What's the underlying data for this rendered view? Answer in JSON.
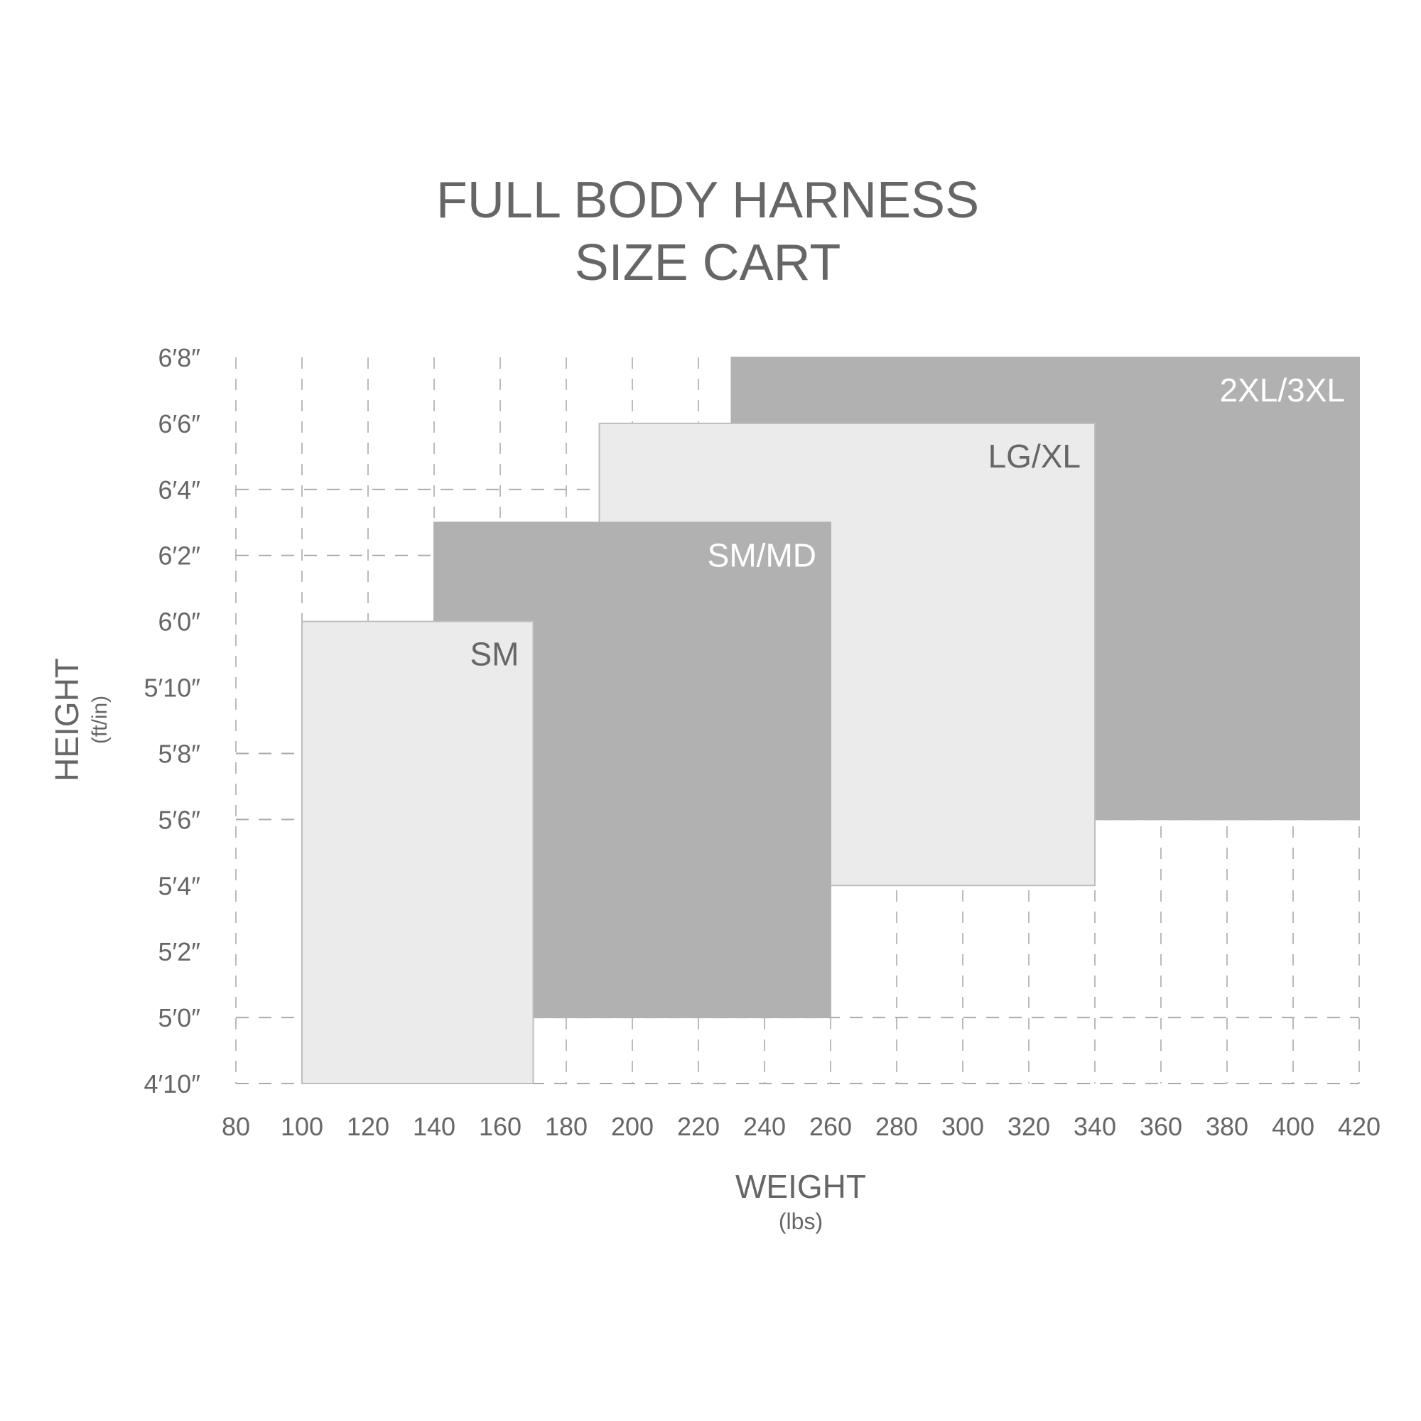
{
  "chart_data": {
    "type": "bar",
    "title_lines": [
      "FULL BODY HARNESS",
      "SIZE CART"
    ],
    "xlabel": "WEIGHT",
    "xunit": "(lbs)",
    "ylabel": "HEIGHT",
    "yunit": "(ft/in)",
    "xlim": [
      80,
      420
    ],
    "ylim_inches": [
      58,
      80
    ],
    "x_ticks": [
      80,
      100,
      120,
      140,
      160,
      180,
      200,
      220,
      240,
      260,
      280,
      300,
      320,
      340,
      360,
      380,
      400,
      420
    ],
    "y_ticks": [
      {
        "label": "6′8″",
        "inches": 80
      },
      {
        "label": "6′6″",
        "inches": 78
      },
      {
        "label": "6′4″",
        "inches": 76
      },
      {
        "label": "6′2″",
        "inches": 74
      },
      {
        "label": "6′0″",
        "inches": 72
      },
      {
        "label": "5′10″",
        "inches": 70
      },
      {
        "label": "5′8″",
        "inches": 68
      },
      {
        "label": "5′6″",
        "inches": 66
      },
      {
        "label": "5′4″",
        "inches": 64
      },
      {
        "label": "5′2″",
        "inches": 62
      },
      {
        "label": "5′0″",
        "inches": 60
      },
      {
        "label": "4′10″",
        "inches": 58
      }
    ],
    "grid": "dashed",
    "sizes": [
      {
        "name": "2XL/3XL",
        "weight": [
          230,
          420
        ],
        "height_inches": [
          66,
          80
        ],
        "color": "#b1b1b1",
        "label_color": "#ffffff"
      },
      {
        "name": "LG/XL",
        "weight": [
          190,
          340
        ],
        "height_inches": [
          64,
          78
        ],
        "color": "#ebebeb",
        "label_color": "#666666"
      },
      {
        "name": "SM/MD",
        "weight": [
          140,
          260
        ],
        "height_inches": [
          60,
          75
        ],
        "color": "#b1b1b1",
        "label_color": "#ffffff"
      },
      {
        "name": "SM",
        "weight": [
          100,
          170
        ],
        "height_inches": [
          58,
          72
        ],
        "color": "#ebebeb",
        "label_color": "#666666"
      }
    ]
  }
}
